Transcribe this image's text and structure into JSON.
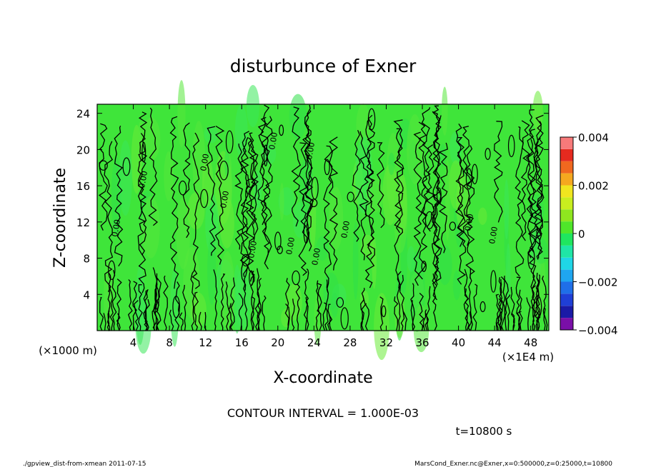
{
  "chart_data": {
    "type": "heatmap",
    "title": "disturbunce of Exner",
    "xlabel": "X-coordinate",
    "ylabel": "Z-coordinate",
    "x_unit_left": "(×1000 m)",
    "x_unit_right": "(×1E4 m)",
    "xlim": [
      0,
      50
    ],
    "ylim": [
      0,
      25
    ],
    "x_ticks": [
      4,
      8,
      12,
      16,
      20,
      24,
      28,
      32,
      36,
      40,
      44,
      48
    ],
    "y_ticks": [
      4,
      8,
      12,
      16,
      20,
      24
    ],
    "contour_interval_text": "CONTOUR INTERVAL = 1.000E-03",
    "time_text": "t=10800 s",
    "contour_labels": [
      "0.00",
      "0.00",
      "0.00",
      "0.00",
      "0.00",
      "0.00",
      "0.00",
      "0.00",
      "0.00",
      "0.00",
      "0.00",
      "0.00"
    ],
    "colorbar": {
      "range": [
        -0.004,
        0.004
      ],
      "tick_values": [
        0.004,
        0.002,
        0,
        -0.002,
        -0.004
      ],
      "tick_labels": [
        "0.004",
        "0.002",
        "0",
        "−0.002",
        "−0.004"
      ],
      "colors": [
        "#7a0fa8",
        "#1a1aa6",
        "#1f3fd6",
        "#1f6fe8",
        "#1fa6f0",
        "#1fd6e6",
        "#1fe6a6",
        "#1fe65f",
        "#4fe62a",
        "#8fe61f",
        "#c8ee1f",
        "#f0e61f",
        "#f5a81f",
        "#f0681f",
        "#e62a1f",
        "#f77a7a"
      ]
    },
    "field_base_color": "#3fe53a"
  },
  "footer": {
    "left": "./gpview_dist-from-xmean  2011-07-15",
    "right": "MarsCond_Exner.nc@Exner,x=0:500000,z=0:25000,t=10800"
  }
}
